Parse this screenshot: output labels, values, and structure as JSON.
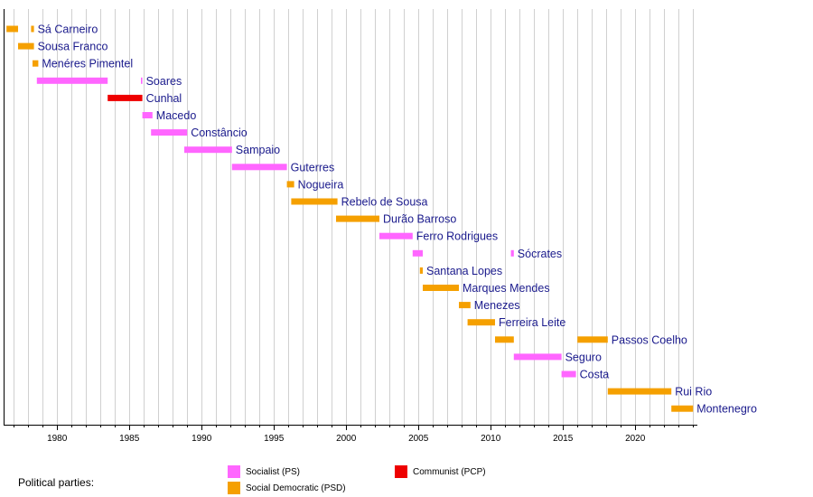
{
  "chart_data": {
    "type": "bar",
    "orientation": "horizontal-timeline",
    "xlim": [
      1976.3,
      2024.3
    ],
    "xticks": [
      1980,
      1985,
      1990,
      1995,
      2000,
      2005,
      2010,
      2015,
      2020
    ],
    "grid": true,
    "parties": {
      "PS": {
        "label": "Socialist (PS)",
        "color": "#ff66ff"
      },
      "PSD": {
        "label": "Social Democratic (PSD)",
        "color": "#f5a000"
      },
      "PCP": {
        "label": "Communist (PCP)",
        "color": "#ee0000"
      }
    },
    "rows": [
      {
        "name": "Sá Carneiro",
        "segments": [
          [
            1976.5,
            1977.3,
            "PSD"
          ],
          [
            1978.2,
            1978.4,
            "PSD"
          ]
        ]
      },
      {
        "name": "Sousa Franco",
        "segments": [
          [
            1977.3,
            1978.4,
            "PSD"
          ]
        ]
      },
      {
        "name": "Menéres Pimentel",
        "segments": [
          [
            1978.3,
            1978.7,
            "PSD"
          ]
        ]
      },
      {
        "name": "Soares",
        "segments": [
          [
            1978.6,
            1983.5,
            "PS"
          ],
          [
            1985.8,
            1985.9,
            "PS"
          ]
        ]
      },
      {
        "name": "Cunhal",
        "segments": [
          [
            1983.5,
            1985.9,
            "PCP"
          ]
        ]
      },
      {
        "name": "Macedo",
        "segments": [
          [
            1985.9,
            1986.6,
            "PS"
          ]
        ]
      },
      {
        "name": "Constâncio",
        "segments": [
          [
            1986.5,
            1989.0,
            "PS"
          ]
        ]
      },
      {
        "name": "Sampaio",
        "segments": [
          [
            1988.8,
            1992.1,
            "PS"
          ]
        ]
      },
      {
        "name": "Guterres",
        "segments": [
          [
            1992.1,
            1995.9,
            "PS"
          ]
        ]
      },
      {
        "name": "Nogueira",
        "segments": [
          [
            1995.9,
            1996.4,
            "PSD"
          ]
        ]
      },
      {
        "name": "Rebelo de Sousa",
        "segments": [
          [
            1996.2,
            1999.4,
            "PSD"
          ]
        ]
      },
      {
        "name": "Durão Barroso",
        "segments": [
          [
            1999.3,
            2002.3,
            "PSD"
          ]
        ]
      },
      {
        "name": "Ferro Rodrigues",
        "segments": [
          [
            2002.3,
            2004.6,
            "PS"
          ]
        ]
      },
      {
        "name": "Sócrates",
        "segments": [
          [
            2004.6,
            2005.3,
            "PS"
          ],
          [
            2011.4,
            2011.6,
            "PS"
          ]
        ]
      },
      {
        "name": "Santana Lopes",
        "segments": [
          [
            2005.1,
            2005.3,
            "PSD"
          ]
        ]
      },
      {
        "name": "Marques Mendes",
        "segments": [
          [
            2005.3,
            2007.8,
            "PSD"
          ]
        ]
      },
      {
        "name": "Menezes",
        "segments": [
          [
            2007.8,
            2008.6,
            "PSD"
          ]
        ]
      },
      {
        "name": "Ferreira Leite",
        "segments": [
          [
            2008.4,
            2010.3,
            "PSD"
          ]
        ]
      },
      {
        "name": "Passos Coelho",
        "segments": [
          [
            2010.3,
            2011.6,
            "PSD"
          ],
          [
            2016.0,
            2018.1,
            "PSD"
          ]
        ]
      },
      {
        "name": "Seguro",
        "segments": [
          [
            2011.6,
            2014.9,
            "PS"
          ]
        ]
      },
      {
        "name": "Costa",
        "segments": [
          [
            2014.9,
            2015.9,
            "PS"
          ]
        ]
      },
      {
        "name": "Rui Rio",
        "segments": [
          [
            2018.1,
            2022.5,
            "PSD"
          ]
        ]
      },
      {
        "name": "Montenegro",
        "segments": [
          [
            2022.5,
            2024.0,
            "PSD"
          ]
        ]
      }
    ]
  },
  "legend": {
    "title": "Political parties:",
    "items": [
      {
        "label": "Socialist (PS)",
        "color": "#ff66ff"
      },
      {
        "label": "Social Democratic (PSD)",
        "color": "#f5a000"
      },
      {
        "label": "Communist (PCP)",
        "color": "#ee0000"
      }
    ]
  }
}
